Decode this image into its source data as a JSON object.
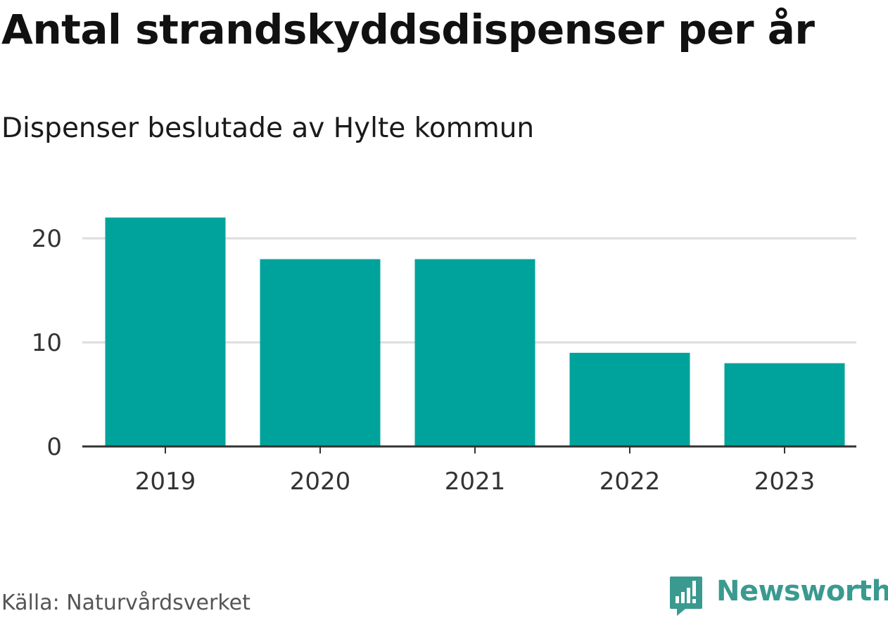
{
  "chart_data": {
    "type": "bar",
    "title": "Antal strandskyddsdispenser per år",
    "subtitle": "Dispenser beslutade av Hylte kommun",
    "categories": [
      "2019",
      "2020",
      "2021",
      "2022",
      "2023"
    ],
    "values": [
      22,
      18,
      18,
      9,
      8
    ],
    "xlabel": "",
    "ylabel": "",
    "ylim": [
      0,
      20
    ],
    "yticks": [
      "0",
      "10",
      "20"
    ],
    "grid": true,
    "bar_color": "#00a39b",
    "source": "Källa: Naturvårdsverket"
  },
  "branding": {
    "name": "Newsworthy",
    "icon": "bar-chart-icon",
    "color": "#3a9a8f"
  }
}
